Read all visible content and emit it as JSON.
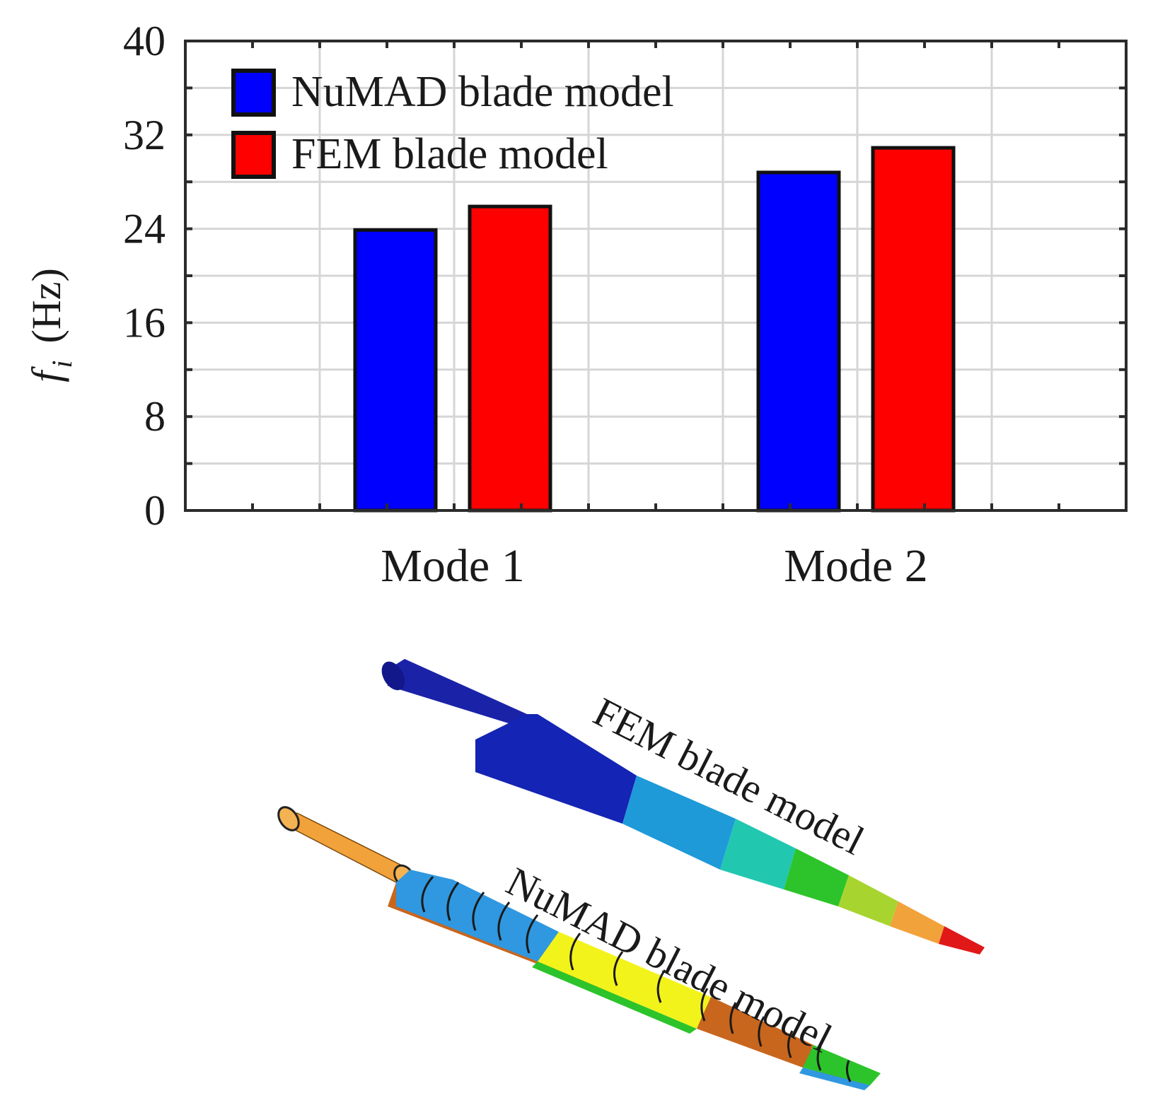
{
  "chart_data": {
    "type": "bar",
    "categories": [
      "Mode 1",
      "Mode 2"
    ],
    "series": [
      {
        "name": "NuMAD blade model",
        "values": [
          23.9,
          28.8
        ],
        "color": "#0000ff"
      },
      {
        "name": "FEM blade model",
        "values": [
          25.9,
          30.9
        ],
        "color": "#ff0000"
      }
    ],
    "xlabel": "",
    "ylabel_main": "f",
    "ylabel_sub": "i",
    "ylabel_unit": "(Hz)",
    "ylim": [
      0,
      40
    ],
    "yticks": [
      0,
      8,
      16,
      24,
      32,
      40
    ],
    "grid": true,
    "legend_position": "top-left"
  },
  "illustration": {
    "fem_label": "FEM blade model",
    "numad_label": "NuMAD blade model",
    "colors": {
      "dark_blue": "#1020b0",
      "light_blue": "#1e9ad8",
      "teal": "#22c7b0",
      "green": "#2cc42a",
      "yellow_green": "#a8d430",
      "orange": "#f2a23a",
      "red": "#e01818",
      "yellow": "#f3f31c",
      "brown": "#c8661e"
    }
  }
}
